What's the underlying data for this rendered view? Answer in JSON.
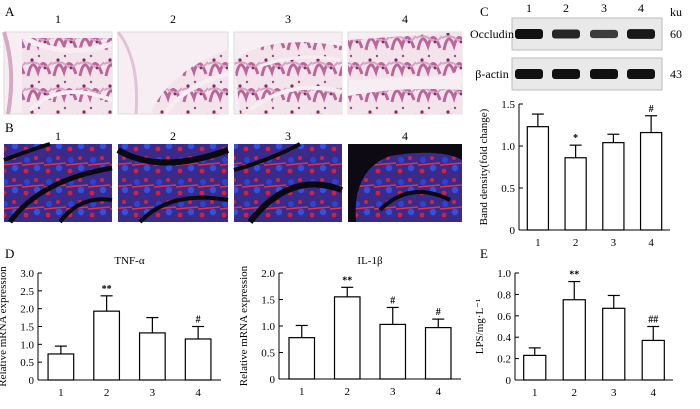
{
  "panels": {
    "A": {
      "label": "A",
      "image_labels": [
        "1",
        "2",
        "3",
        "4"
      ],
      "image_description": "H&E stained colon tissue sections",
      "colors": {
        "bg": "#f6ecf1",
        "tissue": "#c87aa8",
        "dark": "#8e3e74"
      }
    },
    "B": {
      "label": "B",
      "image_labels": [
        "1",
        "2",
        "3",
        "4"
      ],
      "image_description": "Immunofluorescence colon sections (red/blue)",
      "colors": {
        "bg": "#0d0a14",
        "red": "#e2203a",
        "blue": "#2a3dc8"
      }
    },
    "C": {
      "label": "C",
      "blot": {
        "lane_labels": [
          "1",
          "2",
          "3",
          "4"
        ],
        "unit": "ku",
        "rows": [
          {
            "name": "Occludin",
            "size": "60",
            "intensities": [
              1.0,
              0.85,
              0.7,
              0.95
            ]
          },
          {
            "name": "β-actin",
            "size": "43",
            "intensities": [
              1.0,
              1.0,
              1.0,
              1.0
            ]
          }
        ]
      }
    },
    "D": {
      "label": "D"
    },
    "E": {
      "label": "E"
    }
  },
  "chart_data": [
    {
      "id": "occludin",
      "type": "bar",
      "title": "",
      "xlabel": "",
      "ylabel": "Band density(fold change)",
      "categories": [
        "1",
        "2",
        "3",
        "4"
      ],
      "values": [
        1.23,
        0.86,
        1.04,
        1.16
      ],
      "errors": [
        0.15,
        0.15,
        0.1,
        0.2
      ],
      "annotations": [
        "",
        "*",
        "",
        "#"
      ],
      "ylim": [
        0,
        1.5
      ],
      "yticks": [
        0.0,
        0.5,
        1.0,
        1.5
      ],
      "ytick_labels": [
        "0",
        "0.5",
        "1.0",
        "1.5"
      ]
    },
    {
      "id": "tnf",
      "type": "bar",
      "title": "TNF-α",
      "xlabel": "",
      "ylabel": "Relative mRNA expression",
      "categories": [
        "1",
        "2",
        "3",
        "4"
      ],
      "values": [
        0.73,
        1.93,
        1.32,
        1.15
      ],
      "errors": [
        0.22,
        0.43,
        0.43,
        0.35
      ],
      "annotations": [
        "",
        "**",
        "",
        "#"
      ],
      "ylim": [
        0,
        3.0
      ],
      "yticks": [
        0,
        0.5,
        1.0,
        1.5,
        2.0,
        2.5,
        3.0
      ],
      "ytick_labels": [
        "0",
        "0.5",
        "1.0",
        "1.5",
        "2.0",
        "2.5",
        "3.0"
      ]
    },
    {
      "id": "il1b",
      "type": "bar",
      "title": "IL-1β",
      "xlabel": "",
      "ylabel": "Relative mRNA expression",
      "categories": [
        "1",
        "2",
        "3",
        "4"
      ],
      "values": [
        0.78,
        1.55,
        1.03,
        0.97
      ],
      "errors": [
        0.23,
        0.18,
        0.32,
        0.16
      ],
      "annotations": [
        "",
        "**",
        "#",
        "#"
      ],
      "ylim": [
        0,
        2.0
      ],
      "yticks": [
        0,
        0.5,
        1.0,
        1.5,
        2.0
      ],
      "ytick_labels": [
        "0",
        "0.5",
        "1.0",
        "1.5",
        "2.0"
      ]
    },
    {
      "id": "lps",
      "type": "bar",
      "title": "",
      "xlabel": "",
      "ylabel": "LPS/mg·L⁻¹",
      "categories": [
        "1",
        "2",
        "3",
        "4"
      ],
      "values": [
        0.23,
        0.75,
        0.67,
        0.37
      ],
      "errors": [
        0.07,
        0.17,
        0.12,
        0.13
      ],
      "annotations": [
        "",
        "**",
        "",
        "##"
      ],
      "ylim": [
        0,
        1.0
      ],
      "yticks": [
        0,
        0.2,
        0.4,
        0.6,
        0.8,
        1.0
      ],
      "ytick_labels": [
        "0",
        "0.2",
        "0.4",
        "0.6",
        "0.8",
        "1.0"
      ]
    }
  ]
}
